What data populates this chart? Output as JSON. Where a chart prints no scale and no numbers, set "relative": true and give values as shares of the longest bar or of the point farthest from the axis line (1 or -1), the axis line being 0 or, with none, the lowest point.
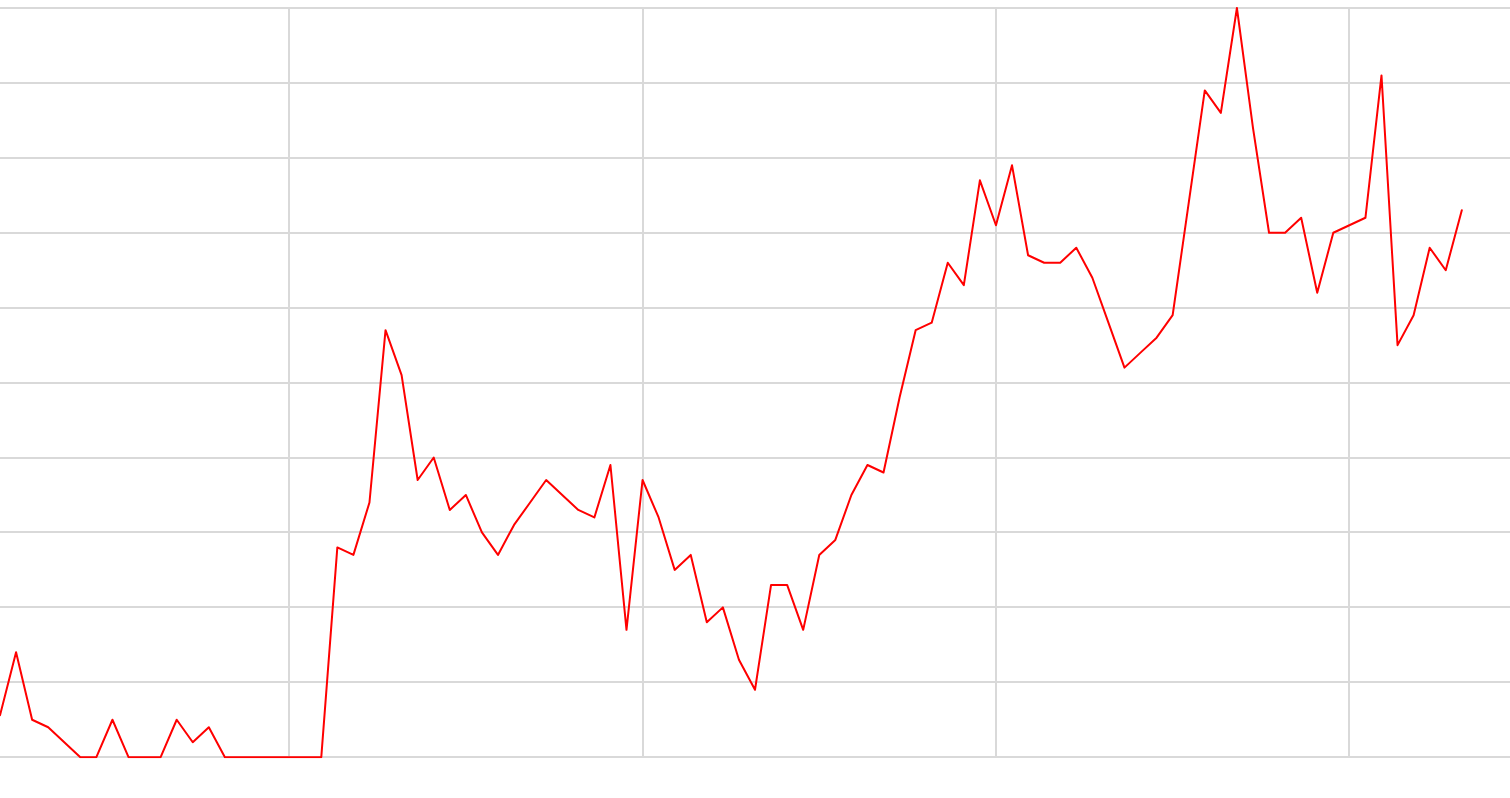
{
  "chart_data": {
    "type": "line",
    "relative": true,
    "grid": true,
    "marker": "none",
    "line_style": "solid",
    "legend": false,
    "categories": [
      null,
      null,
      null,
      null,
      null,
      null,
      null,
      null,
      null,
      null,
      null,
      null,
      null,
      null,
      null,
      null,
      null,
      null,
      null,
      null,
      null,
      null,
      null,
      null,
      null,
      null,
      null,
      null,
      null,
      null,
      null,
      null,
      null,
      null,
      null,
      null,
      null,
      null,
      null,
      null,
      null,
      null,
      null,
      null,
      null,
      null,
      null,
      null,
      null,
      null,
      null,
      null,
      null,
      null,
      null,
      null,
      null,
      null,
      null,
      null,
      null,
      null,
      null,
      null,
      null,
      null,
      null,
      null,
      null,
      null,
      null,
      null,
      null,
      null,
      null,
      null,
      null,
      null,
      null,
      null,
      null,
      null,
      null,
      null,
      null,
      null,
      null,
      null,
      null,
      null,
      null,
      null,
      null,
      null,
      null
    ],
    "series": [
      {
        "color": "#ff0000",
        "values": [
          0.056,
          0.14,
          0.05,
          0.04,
          0.02,
          0,
          0,
          0.05,
          0,
          0,
          0,
          0.05,
          0.02,
          0.04,
          0,
          0,
          0,
          0,
          0,
          0,
          0,
          0.28,
          0.27,
          0.34,
          0.57,
          0.51,
          0.37,
          0.4,
          0.33,
          0.35,
          0.3,
          0.27,
          0.31,
          0.34,
          0.37,
          0.35,
          0.33,
          0.32,
          0.39,
          0.17,
          0.37,
          0.32,
          0.25,
          0.27,
          0.18,
          0.2,
          0.13,
          0.09,
          0.23,
          0.23,
          0.17,
          0.27,
          0.29,
          0.35,
          0.39,
          0.38,
          0.48,
          0.57,
          0.58,
          0.66,
          0.63,
          0.77,
          0.71,
          0.79,
          0.67,
          0.66,
          0.66,
          0.68,
          0.64,
          0.58,
          0.52,
          0.54,
          0.56,
          0.59,
          0.74,
          0.89,
          0.86,
          1,
          0.84,
          0.7,
          0.7,
          0.72,
          0.62,
          0.7,
          0.71,
          0.72,
          0.91,
          0.55,
          0.59,
          0.68,
          0.65,
          0.73,
          null,
          null,
          null
        ]
      }
    ]
  }
}
